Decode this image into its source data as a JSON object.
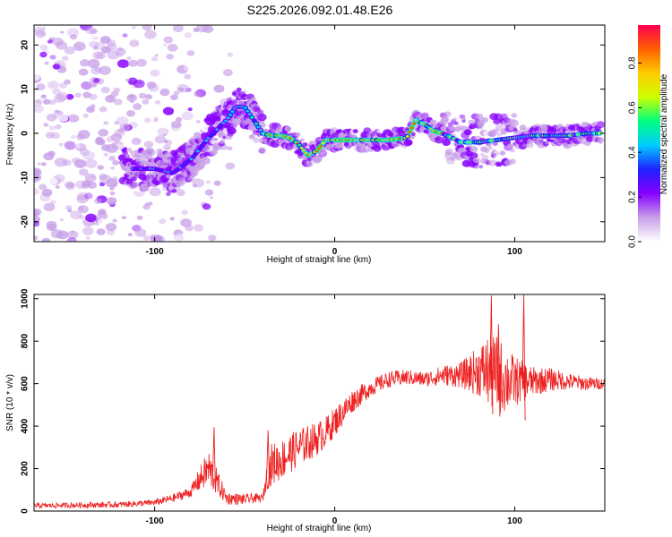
{
  "title": "S225.2026.092.01.48.E26",
  "chart_data": [
    {
      "type": "heatmap",
      "xlabel": "Height of straight line (km)",
      "ylabel": "Frequency (Hz)",
      "xlim": [
        -167,
        150
      ],
      "ylim": [
        -24.5,
        24.5
      ],
      "x_ticks": [
        -100,
        0,
        100
      ],
      "y_ticks": [
        -20,
        -10,
        0,
        10,
        20
      ],
      "colorbar": {
        "label": "Normalized spectral amplitude",
        "range": [
          0,
          0.97
        ],
        "ticks": [
          "0.0",
          "0.2",
          "0.4",
          "0.6",
          "0.8"
        ],
        "colors": [
          "#ffffff",
          "#c8a0e8",
          "#8800ff",
          "#2020ff",
          "#00ccff",
          "#00ff80",
          "#ccff00",
          "#ffcc00",
          "#ff6000",
          "#ff0050"
        ]
      },
      "ridge": {
        "x": [
          -110,
          -100,
          -90,
          -80,
          -70,
          -60,
          -55,
          -50,
          -45,
          -40,
          -35,
          -30,
          -25,
          -20,
          -15,
          -10,
          -5,
          0,
          10,
          20,
          30,
          40,
          45,
          50,
          55,
          60,
          65,
          70,
          80,
          90,
          100,
          110,
          120,
          130,
          140,
          148
        ],
        "y": [
          -8,
          -8,
          -9,
          -6,
          -1,
          3,
          6,
          6,
          3,
          0,
          -0.5,
          -0.5,
          -1,
          -2.5,
          -5,
          -4,
          -1.5,
          -1.5,
          -1.5,
          -1.5,
          -1.5,
          -1,
          3,
          2,
          0.5,
          0,
          -1,
          -2,
          -2,
          -1.5,
          -1,
          -0.5,
          -0.5,
          -0.5,
          0,
          0
        ]
      }
    },
    {
      "type": "line",
      "xlabel": "Height of straight line (km)",
      "ylabel": "SNR (10 * v/v)",
      "xlim": [
        -167,
        150
      ],
      "ylim": [
        0,
        1020
      ],
      "x_ticks": [
        -100,
        0,
        100
      ],
      "y_ticks": [
        0,
        200,
        400,
        600,
        800,
        1000
      ],
      "color": "#ee2020",
      "envelope": {
        "x": [
          -167,
          -140,
          -120,
          -100,
          -90,
          -80,
          -75,
          -70,
          -65,
          -60,
          -50,
          -45,
          -40,
          -38,
          -35,
          -30,
          -20,
          -10,
          -5,
          0,
          10,
          20,
          30,
          40,
          50,
          60,
          70,
          80,
          85,
          90,
          95,
          100,
          110,
          120,
          130,
          140,
          150
        ],
        "y": [
          25,
          28,
          30,
          40,
          60,
          90,
          150,
          200,
          130,
          60,
          55,
          60,
          60,
          150,
          220,
          240,
          300,
          340,
          370,
          420,
          520,
          580,
          620,
          630,
          620,
          640,
          640,
          660,
          660,
          640,
          620,
          610,
          610,
          620,
          610,
          600,
          600
        ]
      },
      "noise": {
        "x": [
          -167,
          -100,
          -80,
          -70,
          -60,
          -40,
          -35,
          -20,
          0,
          20,
          50,
          70,
          80,
          85,
          90,
          95,
          100,
          110,
          130,
          150
        ],
        "amp": [
          12,
          15,
          25,
          90,
          30,
          20,
          100,
          90,
          70,
          40,
          35,
          60,
          120,
          170,
          190,
          160,
          120,
          70,
          40,
          25
        ]
      },
      "spikes": [
        {
          "x": -67,
          "y": 395
        },
        {
          "x": -37,
          "y": 380
        },
        {
          "x": 87,
          "y": 1015
        },
        {
          "x": 91,
          "y": 880
        },
        {
          "x": 105,
          "y": 1020
        }
      ]
    }
  ]
}
